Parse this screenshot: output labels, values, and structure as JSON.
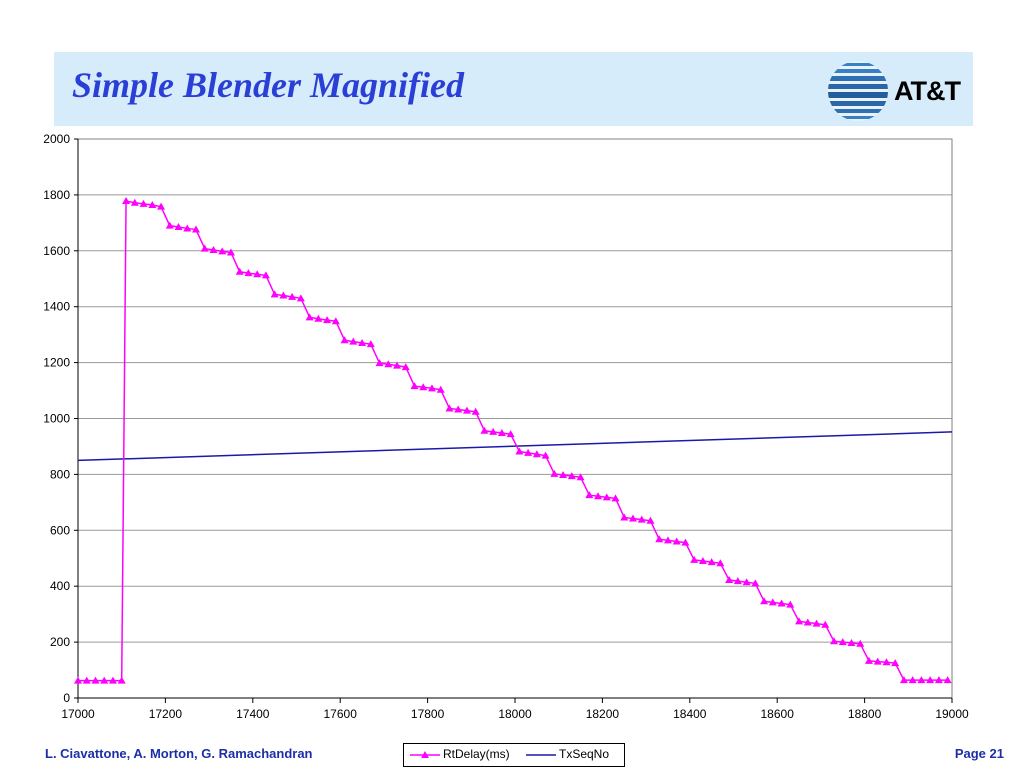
{
  "slide": {
    "title": "Simple Blender Magnified",
    "logo_text": "AT&T",
    "footer_authors": "L. Ciavattone, A. Morton, G. Ramachandran",
    "footer_page": "Page 21"
  },
  "colors": {
    "title_band": "#d6ecfb",
    "title_text": "#2a3fd6",
    "footer_text": "#1c2fa8",
    "series_rtdelay": "#ff00ff",
    "series_txseqno": "#1a1aa8"
  },
  "icons": {
    "logo": "att-globe-icon",
    "rtdelay_marker": "triangle-marker-icon"
  },
  "chart_data": {
    "type": "line",
    "xlim": [
      17000,
      19000
    ],
    "ylim": [
      0,
      2000
    ],
    "xticks": [
      17000,
      17200,
      17400,
      17600,
      17800,
      18000,
      18200,
      18400,
      18600,
      18800,
      19000
    ],
    "yticks": [
      0,
      200,
      400,
      600,
      800,
      1000,
      1200,
      1400,
      1600,
      1800,
      2000
    ],
    "grid": "horizontal",
    "legend_position": "bottom",
    "series": [
      {
        "name": "RtDelay(ms)",
        "marker": "triangle",
        "x": [
          17000,
          17020,
          17040,
          17060,
          17080,
          17100,
          17110,
          17130,
          17150,
          17170,
          17190,
          17210,
          17230,
          17250,
          17270,
          17290,
          17310,
          17330,
          17350,
          17370,
          17390,
          17410,
          17430,
          17450,
          17470,
          17490,
          17510,
          17530,
          17550,
          17570,
          17590,
          17610,
          17630,
          17650,
          17670,
          17690,
          17710,
          17730,
          17750,
          17770,
          17790,
          17810,
          17830,
          17850,
          17870,
          17890,
          17910,
          17930,
          17950,
          17970,
          17990,
          18010,
          18030,
          18050,
          18070,
          18090,
          18110,
          18130,
          18150,
          18170,
          18190,
          18210,
          18230,
          18250,
          18270,
          18290,
          18310,
          18330,
          18350,
          18370,
          18390,
          18410,
          18430,
          18450,
          18470,
          18490,
          18510,
          18530,
          18550,
          18570,
          18590,
          18610,
          18630,
          18650,
          18670,
          18690,
          18710,
          18730,
          18750,
          18770,
          18790,
          18810,
          18830,
          18850,
          18870,
          18890,
          18910,
          18930,
          18950,
          18970,
          18990
        ],
        "y": [
          62,
          62,
          62,
          62,
          62,
          62,
          1778,
          1772,
          1768,
          1764,
          1758,
          1690,
          1685,
          1680,
          1676,
          1608,
          1603,
          1598,
          1594,
          1525,
          1520,
          1516,
          1512,
          1444,
          1440,
          1435,
          1430,
          1362,
          1357,
          1352,
          1348,
          1280,
          1275,
          1270,
          1266,
          1198,
          1194,
          1189,
          1184,
          1116,
          1112,
          1108,
          1103,
          1036,
          1032,
          1028,
          1024,
          956,
          952,
          948,
          944,
          882,
          877,
          872,
          867,
          802,
          798,
          794,
          790,
          726,
          722,
          718,
          714,
          646,
          642,
          638,
          634,
          568,
          564,
          560,
          556,
          494,
          490,
          486,
          482,
          422,
          418,
          414,
          410,
          346,
          342,
          338,
          334,
          274,
          270,
          266,
          262,
          203,
          200,
          197,
          194,
          133,
          130,
          128,
          125,
          64,
          64,
          64,
          64,
          64,
          64
        ]
      },
      {
        "name": "TxSeqNo",
        "x": [
          17000,
          19000
        ],
        "y": [
          850,
          952
        ]
      }
    ]
  }
}
